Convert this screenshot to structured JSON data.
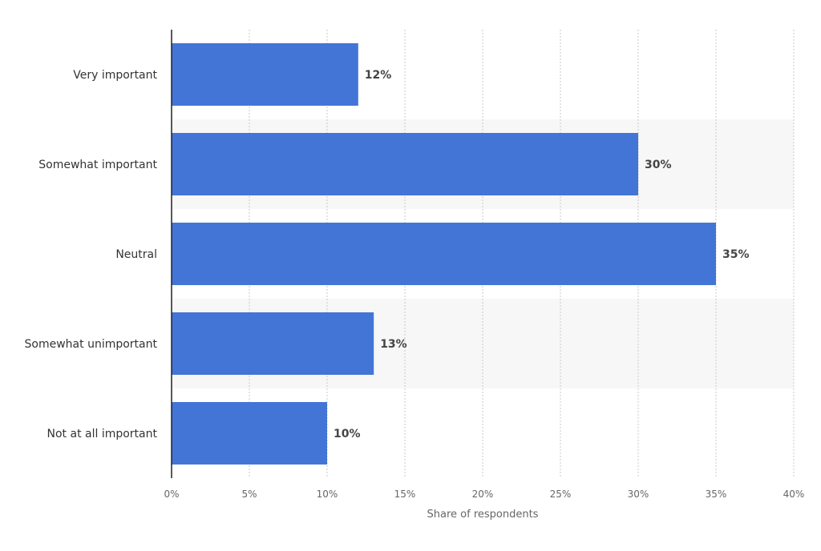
{
  "chart_data": {
    "type": "bar",
    "orientation": "horizontal",
    "categories": [
      "Very important",
      "Somewhat important",
      "Neutral",
      "Somewhat unimportant",
      "Not at all important"
    ],
    "values": [
      12,
      30,
      35,
      13,
      10
    ],
    "value_labels": [
      "12%",
      "30%",
      "35%",
      "13%",
      "10%"
    ],
    "xlabel": "Share of respondents",
    "ylabel": "",
    "xlim": [
      0,
      40
    ],
    "ticks": [
      0,
      5,
      10,
      15,
      20,
      25,
      30,
      35,
      40
    ],
    "tick_labels": [
      "0%",
      "5%",
      "10%",
      "15%",
      "20%",
      "25%",
      "30%",
      "35%",
      "40%"
    ],
    "grid": true,
    "colors": {
      "bar": "#4375d7",
      "band": "#f7f7f7",
      "grid": "#c8c8c8",
      "axis": "#222222"
    }
  }
}
